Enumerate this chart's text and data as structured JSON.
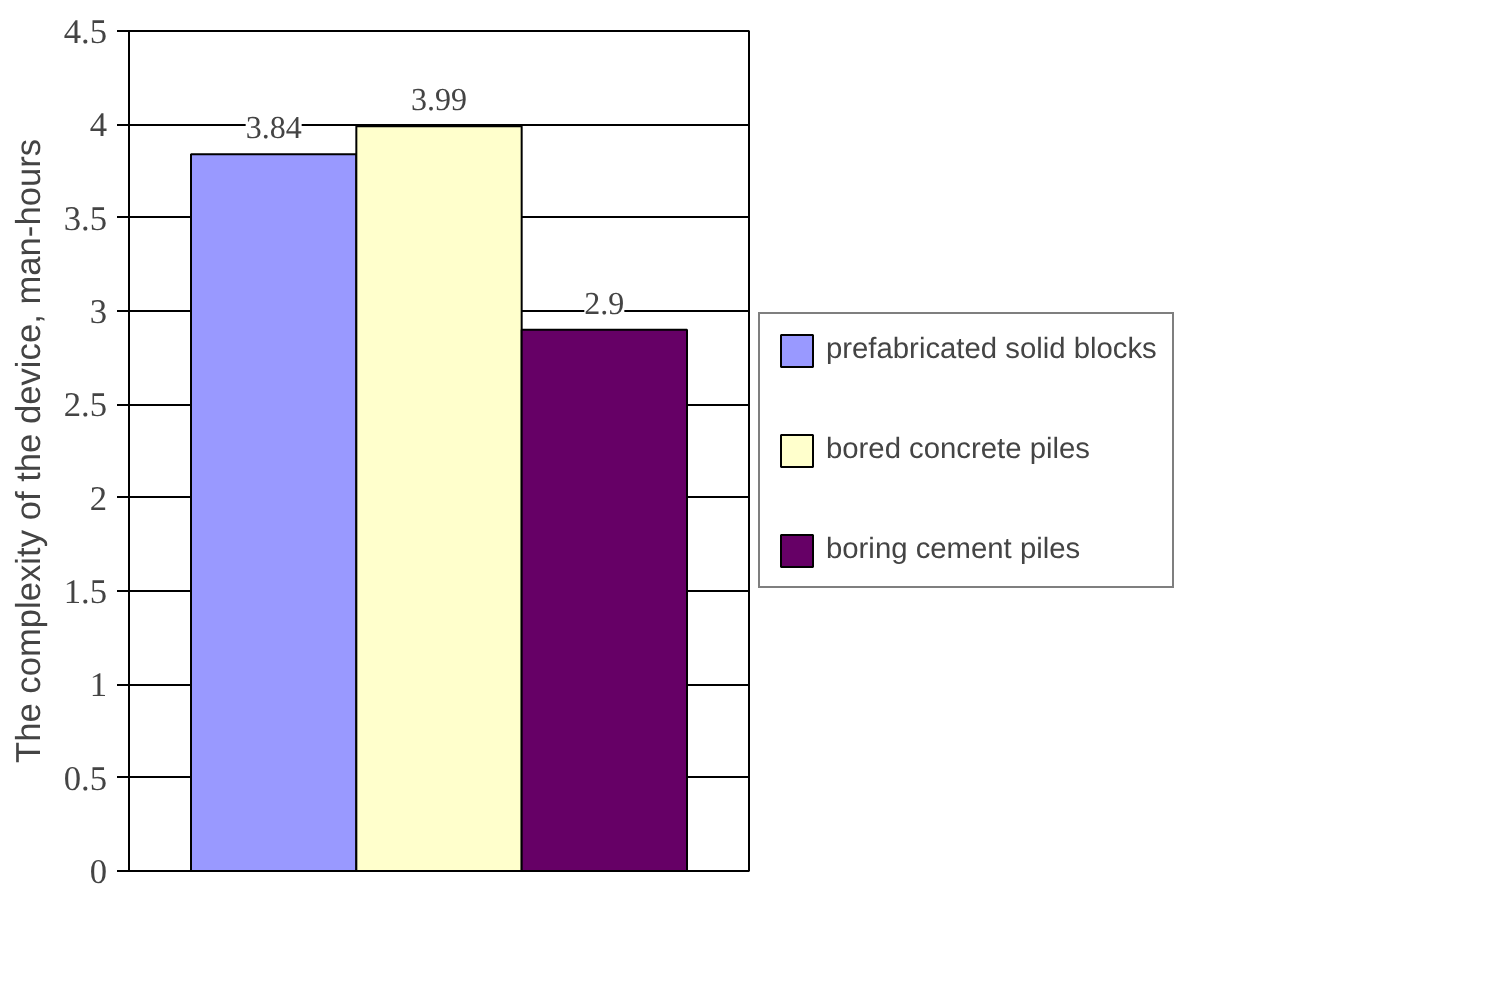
{
  "chart_data": {
    "type": "bar",
    "ylabel": "The complexity of the device, man-hours",
    "categories": [
      null
    ],
    "series": [
      {
        "name": "prefabricated solid blocks",
        "color": "#9999ff",
        "values": [
          3.84
        ]
      },
      {
        "name": "bored concrete piles",
        "color": "#ffffcc",
        "values": [
          3.99
        ]
      },
      {
        "name": "boring cement piles",
        "color": "#660066",
        "values": [
          2.9
        ]
      }
    ],
    "ylim": [
      0,
      4.5
    ],
    "yticks": [
      0,
      0.5,
      1,
      1.5,
      2,
      2.5,
      3,
      3.5,
      4,
      4.5
    ],
    "grid": "y",
    "legend": "right",
    "data_labels": true
  }
}
